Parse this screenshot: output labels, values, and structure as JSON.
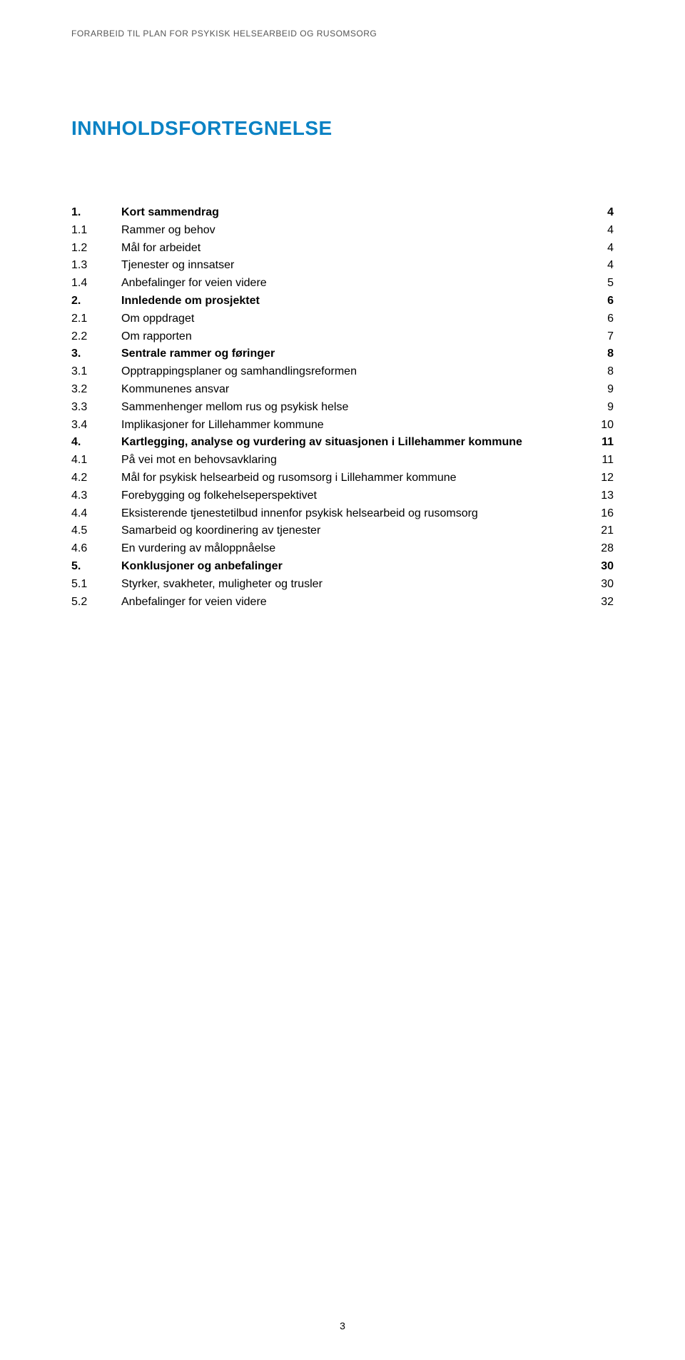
{
  "runningHeader": "FORARBEID TIL PLAN FOR PSYKISK HELSEARBEID OG RUSOMSORG",
  "title": "INNHOLDSFORTEGNELSE",
  "pageNumber": "3",
  "toc": [
    {
      "num": "1.",
      "label": "Kort sammendrag",
      "page": "4",
      "bold": true
    },
    {
      "num": "1.1",
      "label": "Rammer og behov",
      "page": "4",
      "bold": false
    },
    {
      "num": "1.2",
      "label": "Mål for arbeidet",
      "page": "4",
      "bold": false
    },
    {
      "num": "1.3",
      "label": "Tjenester og innsatser",
      "page": "4",
      "bold": false
    },
    {
      "num": "1.4",
      "label": "Anbefalinger for veien videre",
      "page": "5",
      "bold": false
    },
    {
      "num": "2.",
      "label": "Innledende om prosjektet",
      "page": "6",
      "bold": true
    },
    {
      "num": "2.1",
      "label": "Om oppdraget",
      "page": "6",
      "bold": false
    },
    {
      "num": "2.2",
      "label": "Om rapporten",
      "page": "7",
      "bold": false
    },
    {
      "num": "3.",
      "label": "Sentrale rammer og føringer",
      "page": "8",
      "bold": true
    },
    {
      "num": "3.1",
      "label": "Opptrappingsplaner og samhandlingsreformen",
      "page": "8",
      "bold": false
    },
    {
      "num": "3.2",
      "label": "Kommunenes ansvar",
      "page": "9",
      "bold": false
    },
    {
      "num": "3.3",
      "label": "Sammenhenger mellom rus og psykisk helse",
      "page": "9",
      "bold": false
    },
    {
      "num": "3.4",
      "label": "Implikasjoner for Lillehammer kommune",
      "page": "10",
      "bold": false
    },
    {
      "num": "4.",
      "label": "Kartlegging, analyse og vurdering av situasjonen i Lillehammer kommune",
      "page": "11",
      "bold": true
    },
    {
      "num": "4.1",
      "label": "På vei mot en behovsavklaring",
      "page": "11",
      "bold": false
    },
    {
      "num": "4.2",
      "label": "Mål for psykisk helsearbeid og rusomsorg i Lillehammer kommune",
      "page": "12",
      "bold": false
    },
    {
      "num": "4.3",
      "label": "Forebygging og folkehelseperspektivet",
      "page": "13",
      "bold": false
    },
    {
      "num": "4.4",
      "label": "Eksisterende tjenestetilbud innenfor psykisk helsearbeid og rusomsorg",
      "page": "16",
      "bold": false
    },
    {
      "num": "4.5",
      "label": "Samarbeid og koordinering av tjenester",
      "page": "21",
      "bold": false
    },
    {
      "num": "4.6",
      "label": "En vurdering av måloppnåelse",
      "page": "28",
      "bold": false
    },
    {
      "num": "5.",
      "label": "Konklusjoner og anbefalinger",
      "page": "30",
      "bold": true
    },
    {
      "num": "5.1",
      "label": "Styrker, svakheter, muligheter og trusler",
      "page": "30",
      "bold": false
    },
    {
      "num": "5.2",
      "label": "Anbefalinger for veien videre",
      "page": "32",
      "bold": false
    }
  ]
}
